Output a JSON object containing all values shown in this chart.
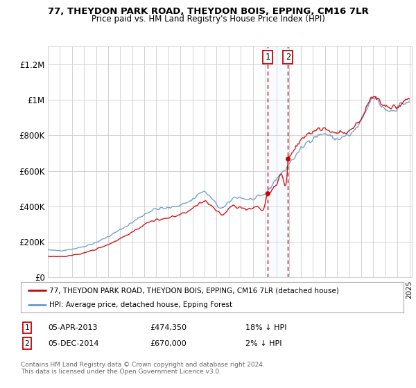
{
  "title": "77, THEYDON PARK ROAD, THEYDON BOIS, EPPING, CM16 7LR",
  "subtitle": "Price paid vs. HM Land Registry's House Price Index (HPI)",
  "ylabel_ticks": [
    "£0",
    "£200K",
    "£400K",
    "£600K",
    "£800K",
    "£1M",
    "£1.2M"
  ],
  "ytick_values": [
    0,
    200000,
    400000,
    600000,
    800000,
    1000000,
    1200000
  ],
  "ylim": [
    0,
    1300000
  ],
  "sale1_year": 2013.25,
  "sale1_price": 474350,
  "sale2_year": 2014.92,
  "sale2_price": 670000,
  "red_color": "#cc0000",
  "blue_color": "#6699cc",
  "shade_color": "#ddeeff",
  "legend_label_red": "77, THEYDON PARK ROAD, THEYDON BOIS, EPPING, CM16 7LR (detached house)",
  "legend_label_blue": "HPI: Average price, detached house, Epping Forest",
  "table_row1": [
    "1",
    "05-APR-2013",
    "£474,350",
    "18% ↓ HPI"
  ],
  "table_row2": [
    "2",
    "05-DEC-2014",
    "£670,000",
    "2% ↓ HPI"
  ],
  "footer": "Contains HM Land Registry data © Crown copyright and database right 2024.\nThis data is licensed under the Open Government Licence v3.0.",
  "bg_color": "#ffffff",
  "grid_color": "#cccccc",
  "xlim_left": 1995.0,
  "xlim_right": 2025.2
}
